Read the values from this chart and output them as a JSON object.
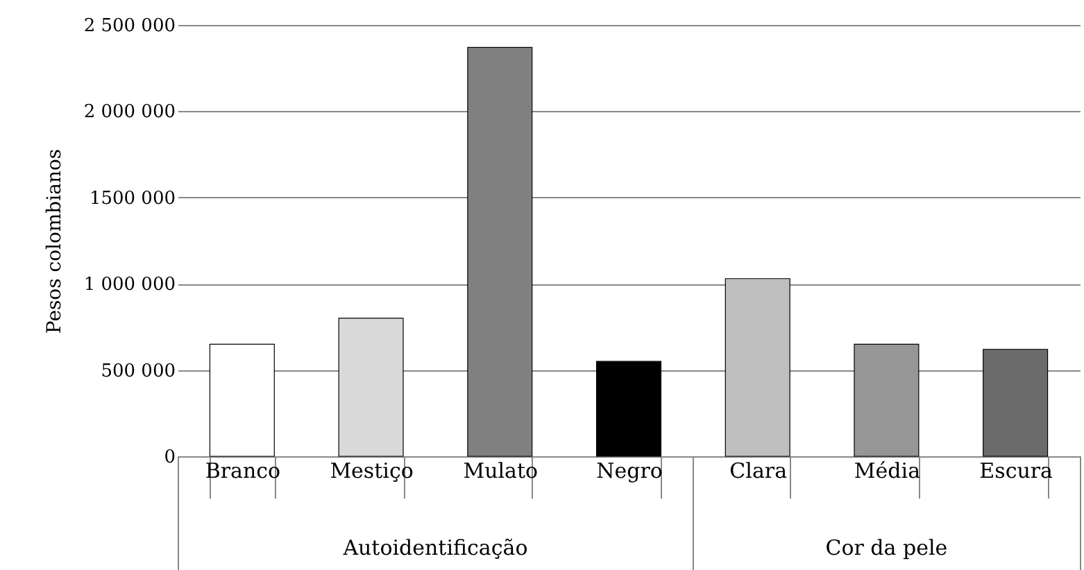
{
  "chart_data": {
    "type": "bar",
    "ylabel": "Pesos colombianos",
    "categories": [
      "Branco",
      "Mestiço",
      "Mulato",
      "Negro",
      "Clara",
      "Média",
      "Escura"
    ],
    "values": [
      650000,
      800000,
      2370000,
      550000,
      1030000,
      650000,
      620000
    ],
    "colors": [
      "#ffffff",
      "#d9d9d9",
      "#808080",
      "#000000",
      "#bfbfbf",
      "#969696",
      "#6b6b6b"
    ],
    "ylim": [
      0,
      2500000
    ],
    "yticks": [
      0,
      {
        "value": 500000,
        "label": "500 000"
      },
      {
        "value": 1000000,
        "label": "1 000 000"
      },
      {
        "value": 1500000,
        "label": "1500 000"
      },
      {
        "value": 2000000,
        "label": "2 000 000"
      },
      {
        "value": 2500000,
        "label": "2 500 000"
      }
    ],
    "grid": "y",
    "annotations": [
      "Autoidentificação",
      "Cor da pele"
    ]
  }
}
